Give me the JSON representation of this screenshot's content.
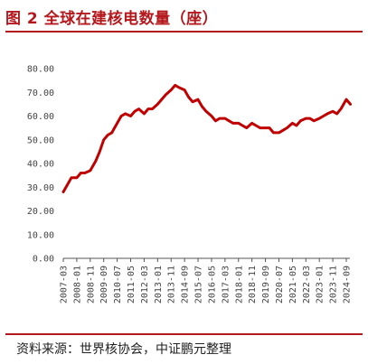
{
  "header": {
    "title": "图 2  全球在建核电数量（座）"
  },
  "footer": {
    "source": "资料来源：世界核协会，中证鹏元整理"
  },
  "colors": {
    "accent": "#b4181d",
    "series": "#c00000"
  },
  "chart_data": {
    "type": "line",
    "title": "图 2  全球在建核电数量（座）",
    "xlabel": "",
    "ylabel": "",
    "ylim": [
      0,
      80
    ],
    "yticks": [
      "0.00",
      "10.00",
      "20.00",
      "30.00",
      "40.00",
      "50.00",
      "60.00",
      "70.00",
      "80.00"
    ],
    "xticks": [
      "2007-03",
      "2008-01",
      "2008-11",
      "2009-09",
      "2010-07",
      "2011-05",
      "2012-03",
      "2013-01",
      "2013-11",
      "2014-09",
      "2015-07",
      "2016-05",
      "2017-03",
      "2018-01",
      "2018-11",
      "2019-09",
      "2020-07",
      "2021-05",
      "2022-03",
      "2023-01",
      "2023-11",
      "2024-09"
    ],
    "grid": false,
    "legend": "none",
    "series": [
      {
        "x": [
          "2007-03",
          "2007-06",
          "2007-09",
          "2008-01",
          "2008-04",
          "2008-07",
          "2008-11",
          "2009-03",
          "2009-06",
          "2009-09",
          "2009-12",
          "2010-03",
          "2010-07",
          "2010-10",
          "2011-01",
          "2011-05",
          "2011-08",
          "2011-11",
          "2012-03",
          "2012-06",
          "2012-09",
          "2013-01",
          "2013-04",
          "2013-07",
          "2013-11",
          "2014-02",
          "2014-05",
          "2014-09",
          "2014-12",
          "2015-03",
          "2015-07",
          "2015-10",
          "2016-01",
          "2016-05",
          "2016-08",
          "2016-11",
          "2017-03",
          "2017-06",
          "2017-09",
          "2018-01",
          "2018-04",
          "2018-07",
          "2018-11",
          "2019-02",
          "2019-05",
          "2019-09",
          "2019-12",
          "2020-03",
          "2020-07",
          "2020-10",
          "2021-01",
          "2021-05",
          "2021-08",
          "2021-11",
          "2022-03",
          "2022-06",
          "2022-09",
          "2023-01",
          "2023-04",
          "2023-07",
          "2023-11",
          "2024-02",
          "2024-05",
          "2024-09",
          "2024-12"
        ],
        "values": [
          28,
          31,
          34,
          34,
          36,
          36,
          37,
          41,
          45,
          50,
          52,
          53,
          57,
          60,
          61,
          60,
          62,
          63,
          61,
          63,
          63,
          65,
          67,
          69,
          71,
          73,
          72,
          71,
          68,
          66,
          67,
          64,
          62,
          60,
          58,
          59,
          59,
          58,
          57,
          57,
          56,
          55,
          57,
          56,
          55,
          55,
          55,
          53,
          53,
          54,
          55,
          57,
          56,
          58,
          59,
          59,
          58,
          59,
          60,
          61,
          62,
          61,
          63,
          67,
          65
        ]
      }
    ]
  }
}
